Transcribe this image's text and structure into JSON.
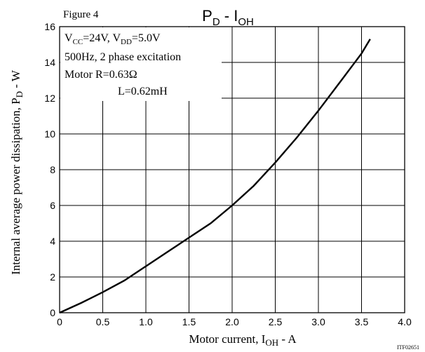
{
  "figure_label": "Figure 4",
  "title": {
    "main": "P",
    "sub1": "D",
    "mid": " - I",
    "sub2": "OH"
  },
  "ylabel": {
    "main": "Internal average power dissipation, P",
    "sub": "D",
    "tail": " - W"
  },
  "xlabel": {
    "main": "Motor current, I",
    "sub": "OH",
    "tail": " - A"
  },
  "code": "ITF02651",
  "conditions": {
    "line1": {
      "v1": "V",
      "s1": "CC",
      "t1": "=24V, V",
      "s2": "DD",
      "t2": "=5.0V"
    },
    "line2": "500Hz, 2 phase excitation",
    "line3": "Motor  R=0.63Ω",
    "line4": "L=0.62mH"
  },
  "chart_data": {
    "type": "line",
    "title": "PD - IOH",
    "xlabel": "Motor current, IOH - A",
    "ylabel": "Internal average power dissipation, PD - W",
    "xlim": [
      0,
      4.0
    ],
    "ylim": [
      0,
      16
    ],
    "xticks": [
      0,
      0.5,
      1.0,
      1.5,
      2.0,
      2.5,
      3.0,
      3.5,
      4.0
    ],
    "xtick_labels": [
      "0",
      "0.5",
      "1.0",
      "1.5",
      "2.0",
      "2.5",
      "3.0",
      "3.5",
      "4.0"
    ],
    "yticks": [
      0,
      2,
      4,
      6,
      8,
      10,
      12,
      14,
      16
    ],
    "ytick_labels": [
      "0",
      "2",
      "4",
      "6",
      "8",
      "10",
      "12",
      "14",
      "16"
    ],
    "grid": true,
    "series": [
      {
        "x": [
          0,
          0.25,
          0.5,
          0.75,
          1.0,
          1.25,
          1.5,
          1.75,
          2.0,
          2.25,
          2.5,
          2.75,
          3.0,
          3.25,
          3.5,
          3.6
        ],
        "y": [
          0,
          0.55,
          1.15,
          1.8,
          2.6,
          3.4,
          4.2,
          5.0,
          6.0,
          7.1,
          8.4,
          9.8,
          11.3,
          12.9,
          14.5,
          15.3
        ]
      }
    ]
  }
}
